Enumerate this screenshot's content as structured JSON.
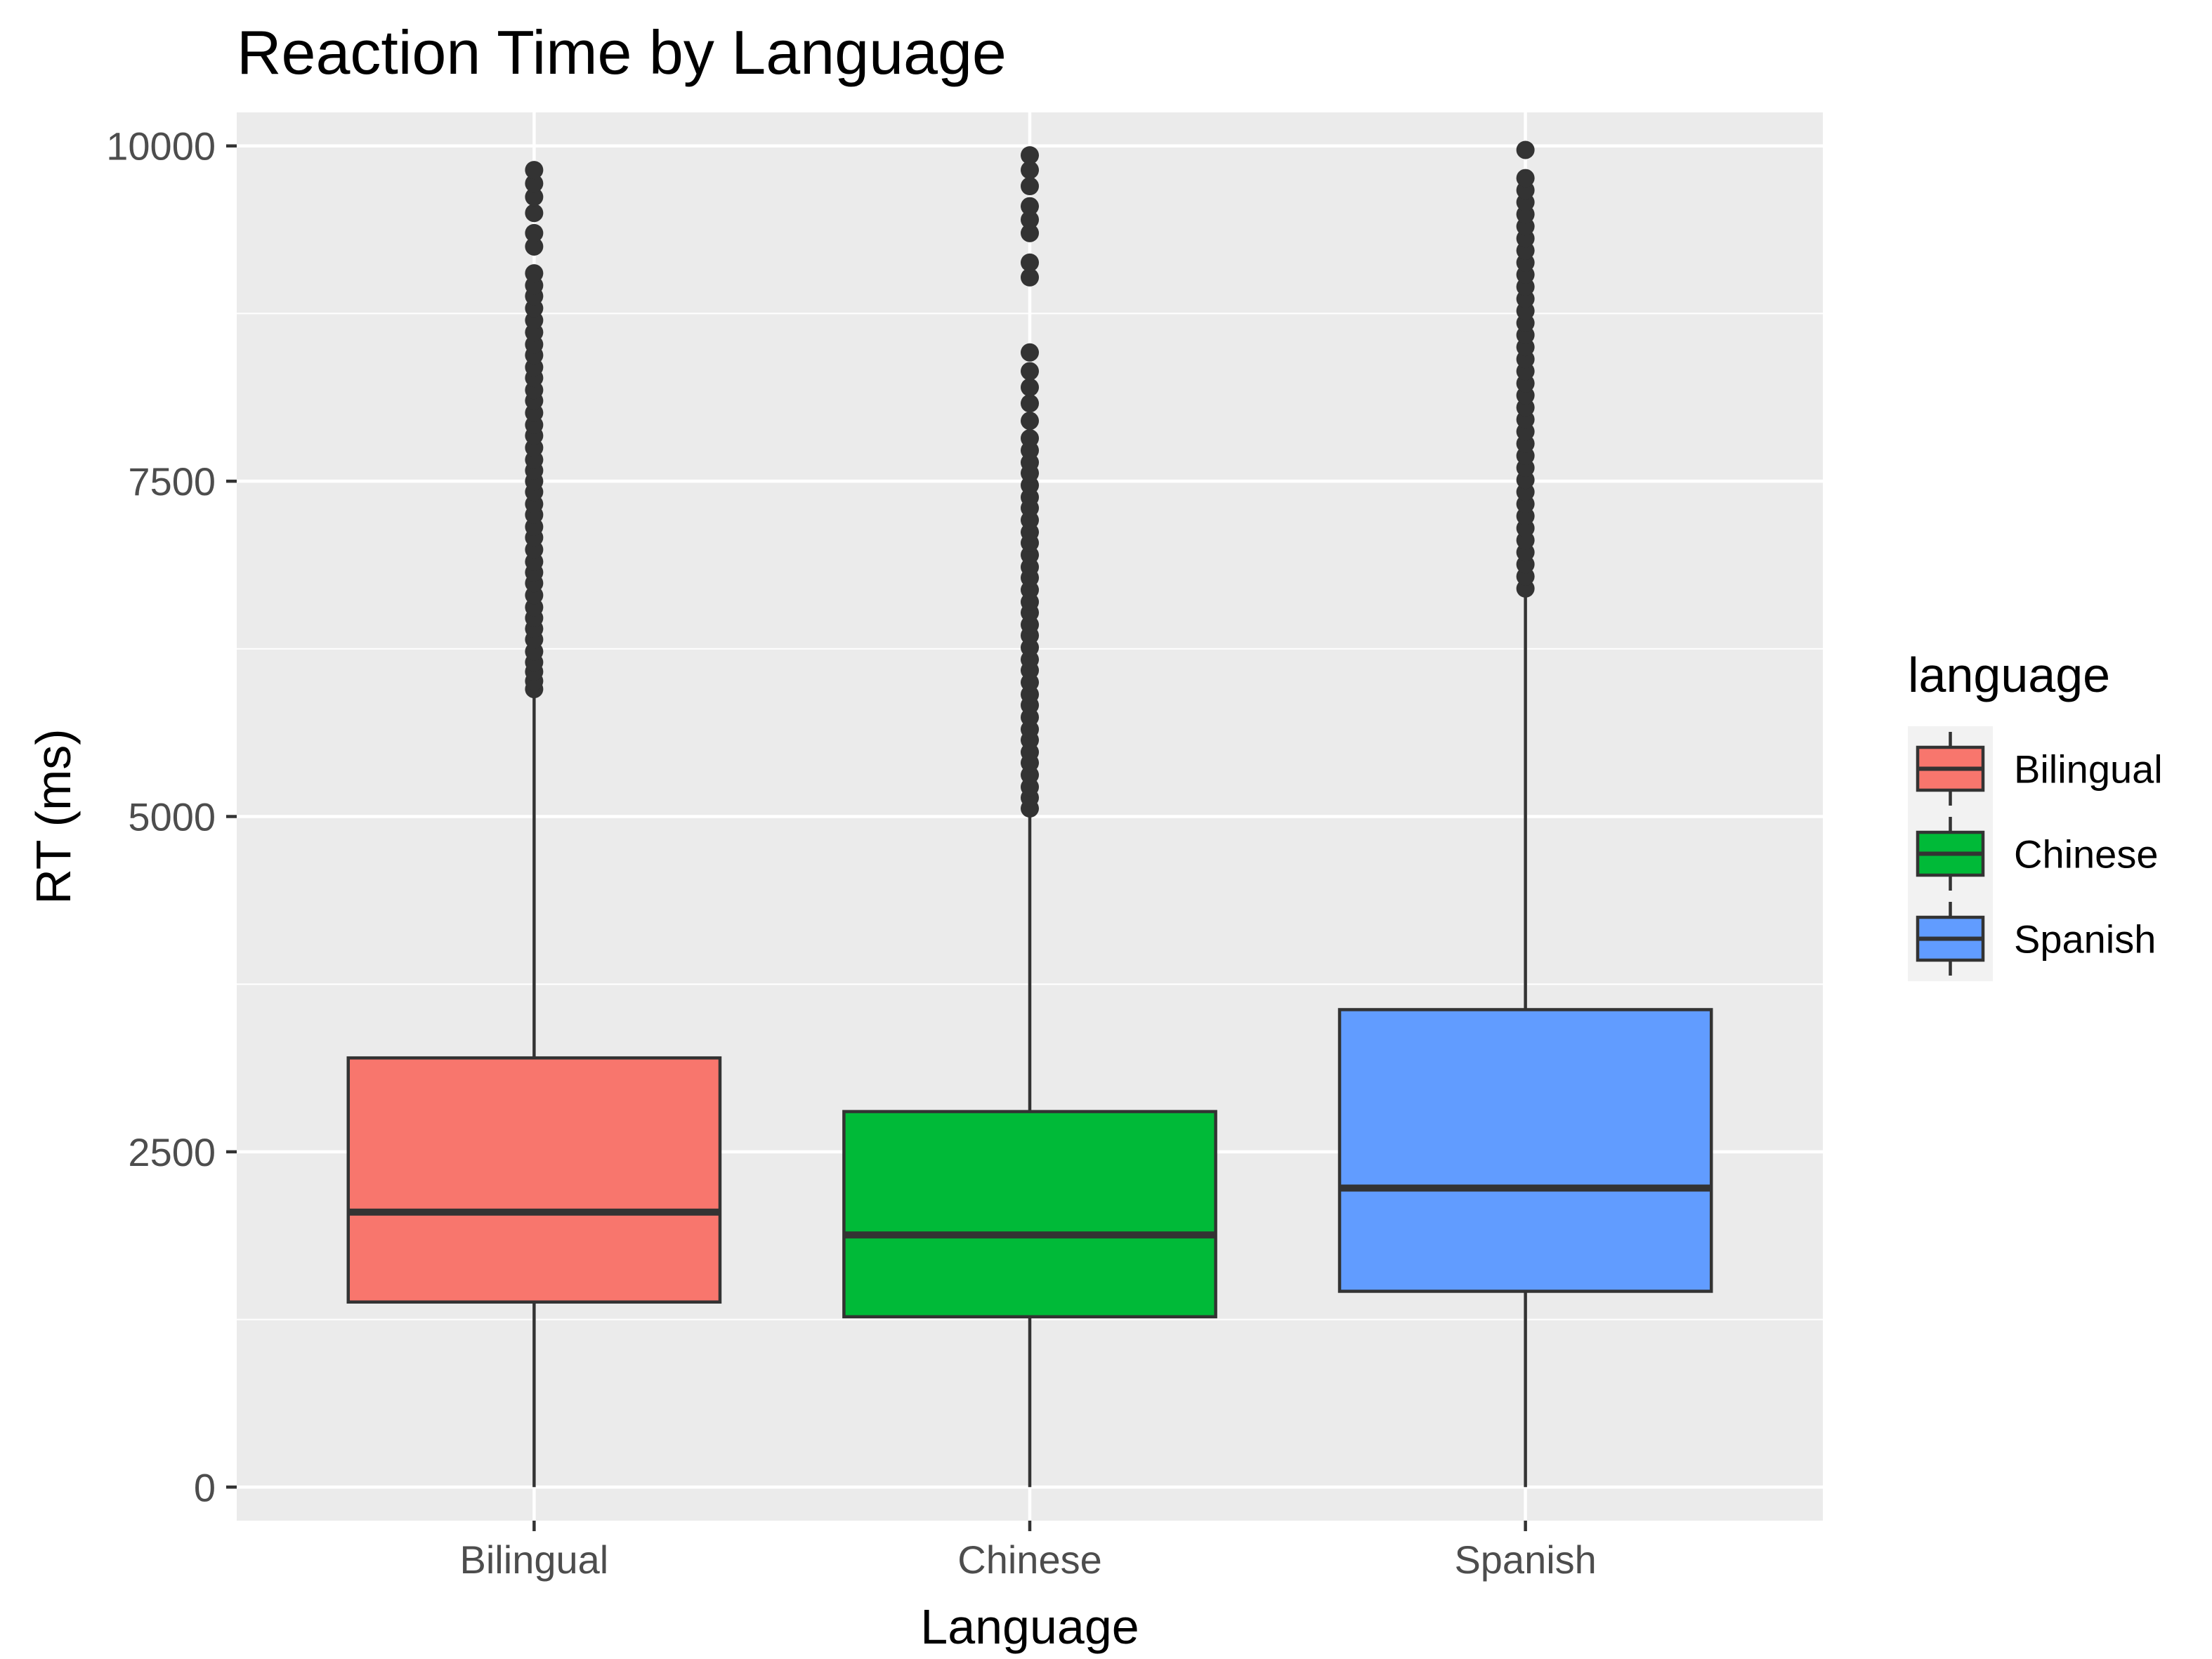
{
  "chart_data": {
    "type": "boxplot",
    "title": "Reaction Time by Language",
    "xlabel": "Language",
    "ylabel": "RT (ms)",
    "ylim": [
      -250,
      10250
    ],
    "y_ticks": [
      0,
      2500,
      5000,
      7500,
      10000
    ],
    "y_tick_labels": [
      "0",
      "2500",
      "5000",
      "7500",
      "10000"
    ],
    "categories": [
      "Bilingual",
      "Chinese",
      "Spanish"
    ],
    "legend": {
      "title": "language",
      "position": "right"
    },
    "grid": true,
    "boxes": [
      {
        "name": "Bilingual",
        "color": "#F8766D",
        "whisker_low": 0,
        "q1": 1380,
        "median": 2050,
        "q3": 3200,
        "whisker_high": 5930,
        "outliers": [
          5950,
          6010,
          6080,
          6150,
          6230,
          6320,
          6400,
          6480,
          6560,
          6650,
          6740,
          6820,
          6900,
          6990,
          7080,
          7160,
          7250,
          7330,
          7420,
          7500,
          7580,
          7660,
          7750,
          7840,
          7920,
          8010,
          8100,
          8180,
          8270,
          8350,
          8440,
          8520,
          8610,
          8700,
          8790,
          8880,
          8960,
          9050,
          9250,
          9350,
          9500,
          9620,
          9720,
          9820
        ]
      },
      {
        "name": "Chinese",
        "color": "#00BA38",
        "whisker_low": 0,
        "q1": 1270,
        "median": 1880,
        "q3": 2800,
        "whisker_high": 5040,
        "outliers": [
          5060,
          5140,
          5220,
          5310,
          5400,
          5480,
          5570,
          5650,
          5740,
          5830,
          5910,
          6000,
          6090,
          6170,
          6260,
          6350,
          6430,
          6520,
          6600,
          6690,
          6780,
          6860,
          6950,
          7040,
          7120,
          7210,
          7300,
          7380,
          7470,
          7560,
          7640,
          7730,
          7820,
          7950,
          8080,
          8200,
          8320,
          8460,
          9020,
          9130,
          9350,
          9450,
          9550,
          9700,
          9820,
          9930
        ]
      },
      {
        "name": "Spanish",
        "color": "#619CFF",
        "whisker_low": 0,
        "q1": 1460,
        "median": 2230,
        "q3": 3560,
        "whisker_high": 6680,
        "outliers": [
          6700,
          6790,
          6880,
          6970,
          7060,
          7150,
          7240,
          7330,
          7420,
          7510,
          7600,
          7690,
          7780,
          7870,
          7960,
          8050,
          8140,
          8230,
          8320,
          8410,
          8500,
          8590,
          8680,
          8770,
          8860,
          8950,
          9040,
          9130,
          9220,
          9310,
          9400,
          9490,
          9580,
          9670,
          9760,
          9970
        ]
      }
    ]
  }
}
